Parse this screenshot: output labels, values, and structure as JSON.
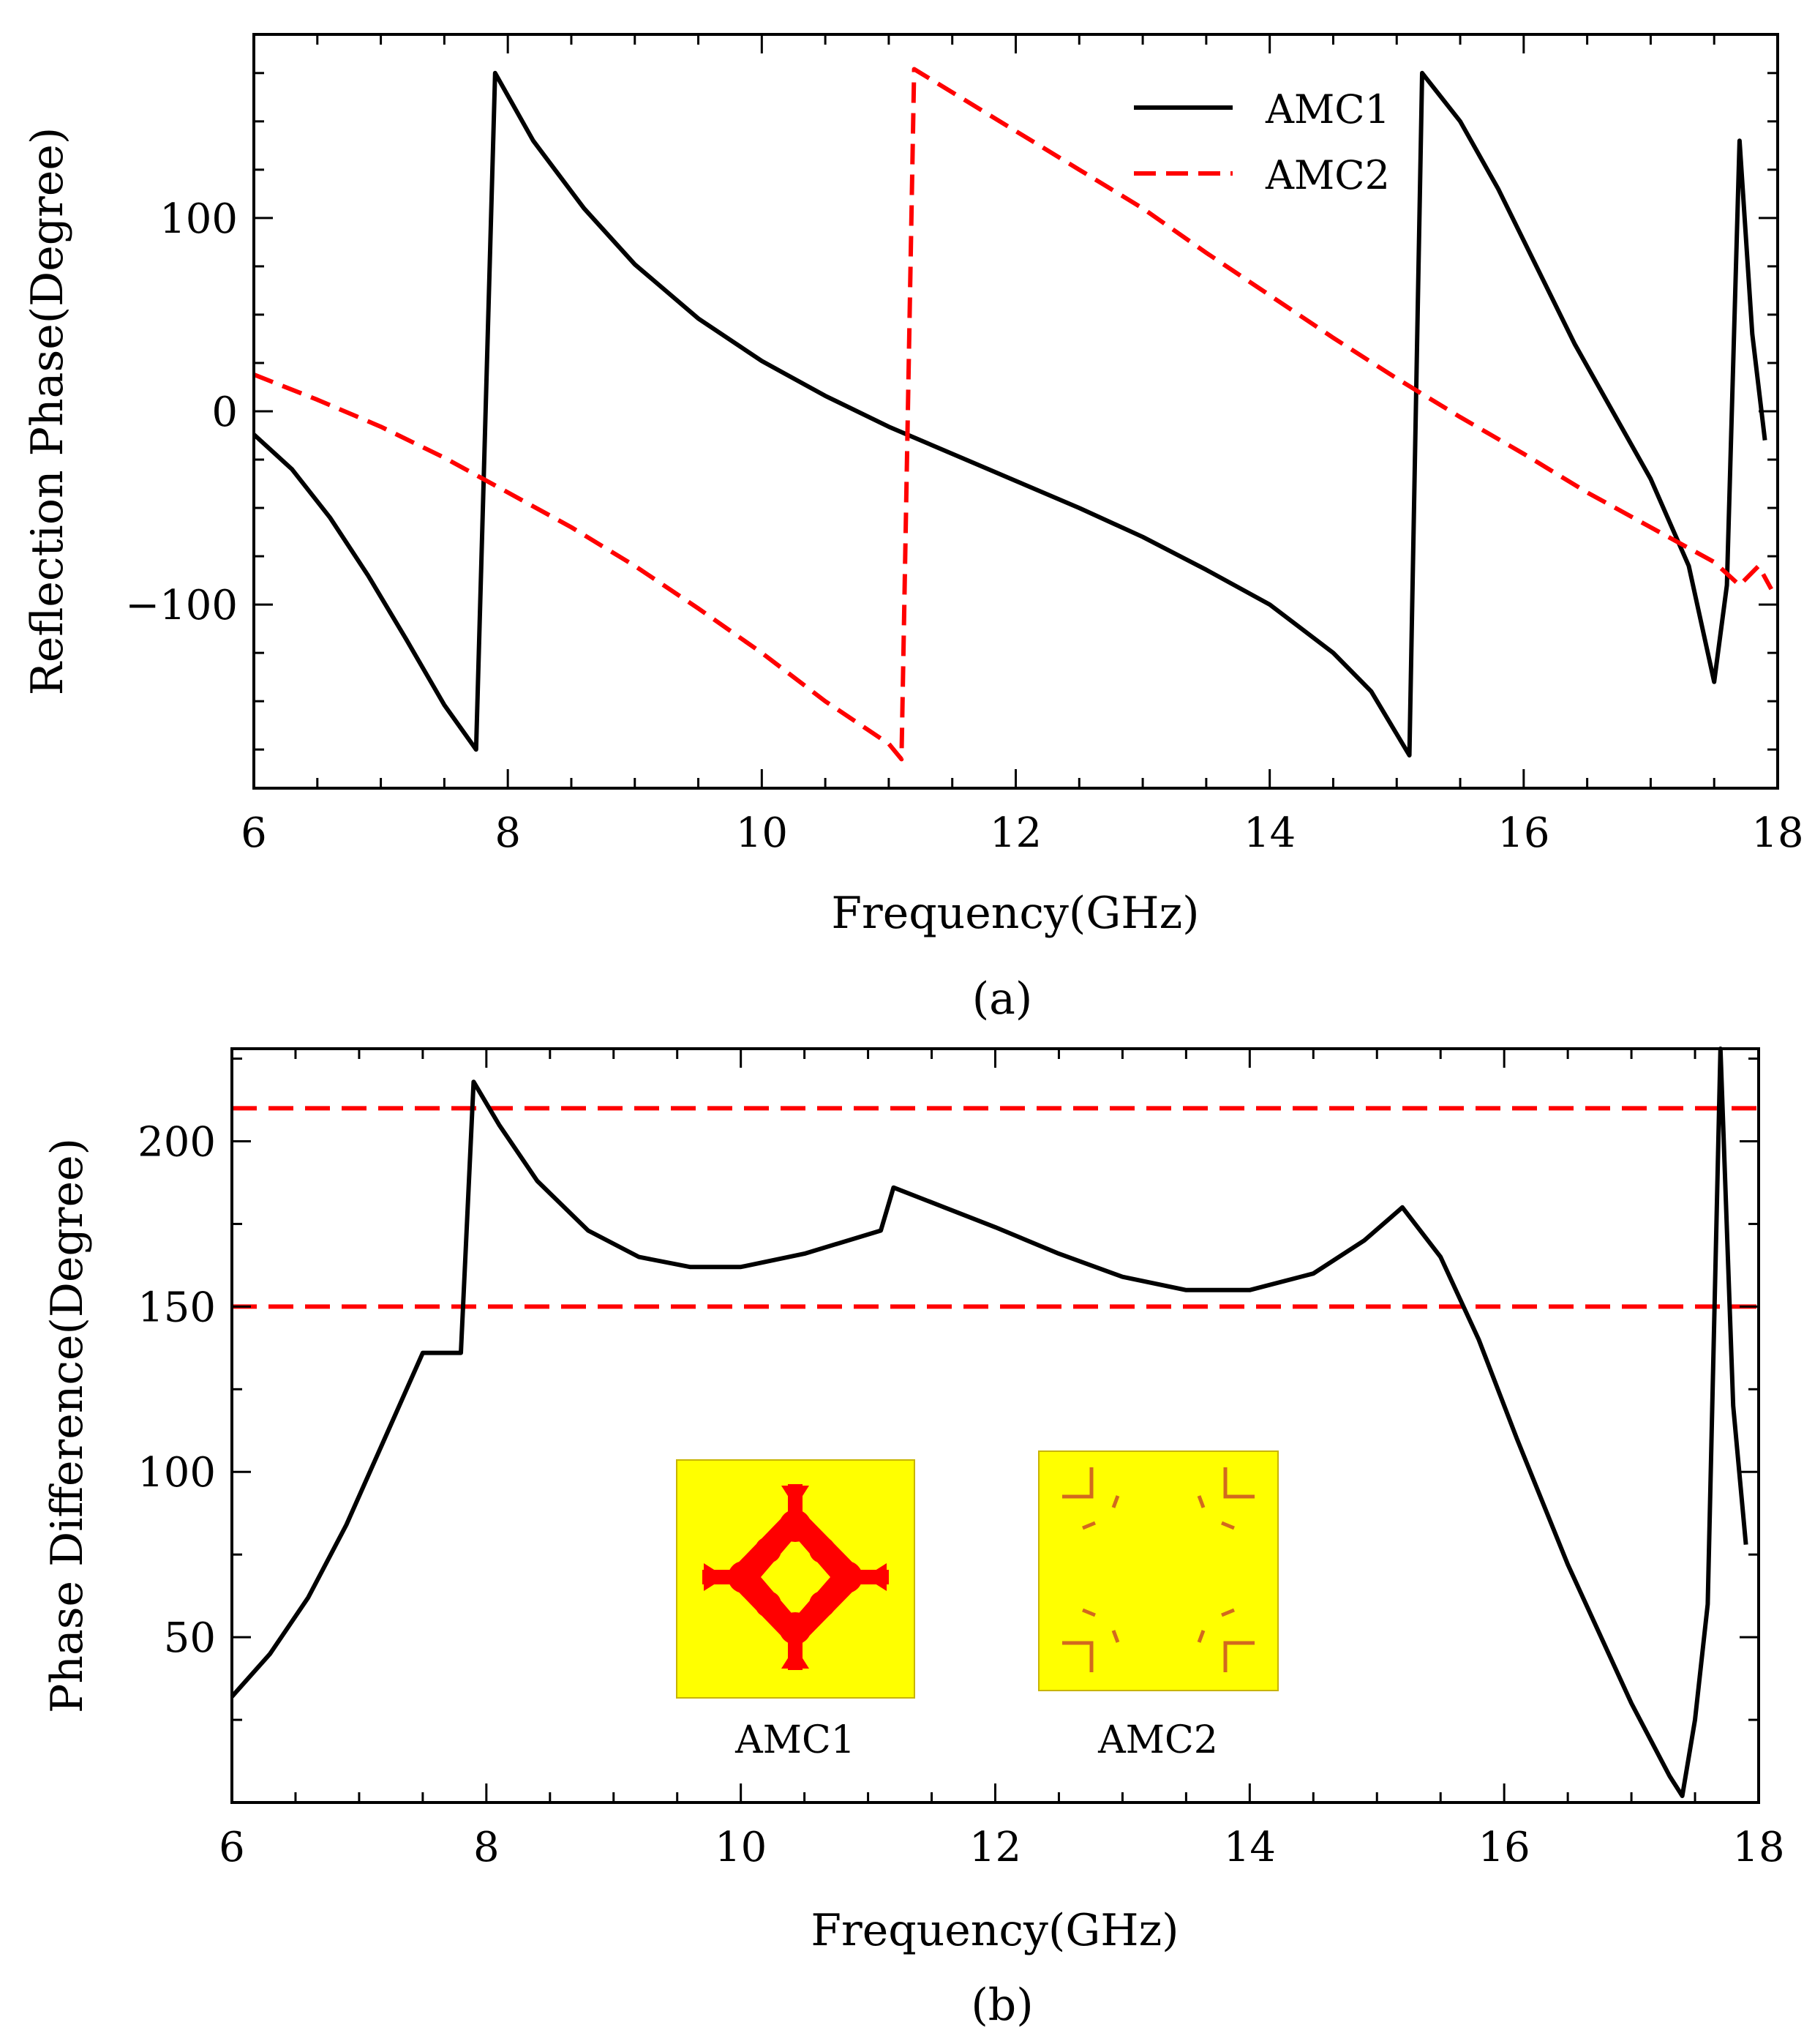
{
  "chart_data": [
    {
      "type": "line",
      "panel": "(a)",
      "xlabel": "Frequency(GHz)",
      "ylabel": "Reflection Phase(Degree)",
      "xlim": [
        6,
        18
      ],
      "ylim": [
        -195,
        195
      ],
      "xticks": [
        6,
        8,
        10,
        12,
        14,
        16,
        18
      ],
      "xtick_labels": [
        "6",
        "8",
        "10",
        "12",
        "14",
        "16",
        "18"
      ],
      "yticks": [
        -100,
        0,
        100
      ],
      "ytick_labels": [
        "−100",
        "0",
        "100"
      ],
      "grid": false,
      "legend": "top-right",
      "series": [
        {
          "name": "AMC1",
          "color": "#000000",
          "style": "solid",
          "x": [
            6.0,
            6.3,
            6.6,
            6.9,
            7.2,
            7.5,
            7.75,
            7.9,
            8.2,
            8.6,
            9.0,
            9.5,
            10.0,
            10.5,
            11.0,
            11.5,
            12.0,
            12.5,
            13.0,
            13.5,
            14.0,
            14.5,
            14.8,
            15.1,
            15.2,
            15.5,
            15.8,
            16.1,
            16.4,
            16.7,
            17.0,
            17.3,
            17.5,
            17.6,
            17.7,
            17.8,
            17.9
          ],
          "y": [
            -12,
            -30,
            -55,
            -85,
            -118,
            -152,
            -175,
            175,
            140,
            105,
            76,
            48,
            26,
            8,
            -8,
            -22,
            -36,
            -50,
            -65,
            -82,
            -100,
            -125,
            -145,
            -178,
            175,
            150,
            115,
            75,
            35,
            0,
            -35,
            -80,
            -140,
            -90,
            140,
            40,
            -15
          ]
        },
        {
          "name": "AMC2",
          "color": "#ff0000",
          "style": "dashed",
          "x": [
            6.0,
            6.5,
            7.0,
            7.5,
            8.0,
            8.5,
            9.0,
            9.5,
            10.0,
            10.5,
            11.0,
            11.1,
            11.2,
            11.5,
            12.0,
            12.5,
            13.0,
            13.5,
            14.0,
            14.5,
            15.0,
            15.5,
            16.0,
            16.5,
            17.0,
            17.5,
            17.7,
            17.85,
            17.95
          ],
          "y": [
            19,
            6,
            -8,
            -24,
            -42,
            -60,
            -80,
            -102,
            -125,
            -150,
            -172,
            -180,
            177,
            165,
            145,
            125,
            105,
            82,
            60,
            38,
            17,
            -3,
            -22,
            -42,
            -60,
            -78,
            -90,
            -80,
            -92
          ]
        }
      ]
    },
    {
      "type": "line",
      "panel": "(b)",
      "xlabel": "Frequency(GHz)",
      "ylabel": "Phase Difference(Degree)",
      "xlim": [
        6,
        18
      ],
      "ylim": [
        0,
        228
      ],
      "xticks": [
        6,
        8,
        10,
        12,
        14,
        16,
        18
      ],
      "xtick_labels": [
        "6",
        "8",
        "10",
        "12",
        "14",
        "16",
        "18"
      ],
      "yticks": [
        50,
        100,
        150,
        200
      ],
      "ytick_labels": [
        "50",
        "100",
        "150",
        "200"
      ],
      "grid": false,
      "reference_lines": [
        {
          "y": 150,
          "color": "#ff0000",
          "style": "dashed"
        },
        {
          "y": 210,
          "color": "#ff0000",
          "style": "dashed"
        }
      ],
      "series": [
        {
          "color": "#000000",
          "style": "solid",
          "x": [
            6.0,
            6.3,
            6.6,
            6.9,
            7.2,
            7.5,
            7.8,
            7.9,
            8.1,
            8.4,
            8.8,
            9.2,
            9.6,
            10.0,
            10.5,
            11.1,
            11.2,
            11.6,
            12.0,
            12.5,
            13.0,
            13.5,
            14.0,
            14.5,
            14.9,
            15.2,
            15.5,
            15.8,
            16.1,
            16.5,
            17.0,
            17.3,
            17.4,
            17.5,
            17.6,
            17.7,
            17.8,
            17.9
          ],
          "y": [
            32,
            45,
            62,
            84,
            110,
            136,
            136,
            218,
            205,
            188,
            173,
            165,
            162,
            162,
            166,
            173,
            186,
            180,
            174,
            166,
            159,
            155,
            155,
            160,
            170,
            180,
            165,
            140,
            110,
            72,
            30,
            8,
            2,
            25,
            60,
            228,
            120,
            78
          ]
        }
      ],
      "insets": [
        {
          "label": "AMC1",
          "background": "#ffff00",
          "pattern_color": "#ff0000"
        },
        {
          "label": "AMC2",
          "background": "#ffff00",
          "pattern_color": "#d2691e"
        }
      ]
    }
  ]
}
